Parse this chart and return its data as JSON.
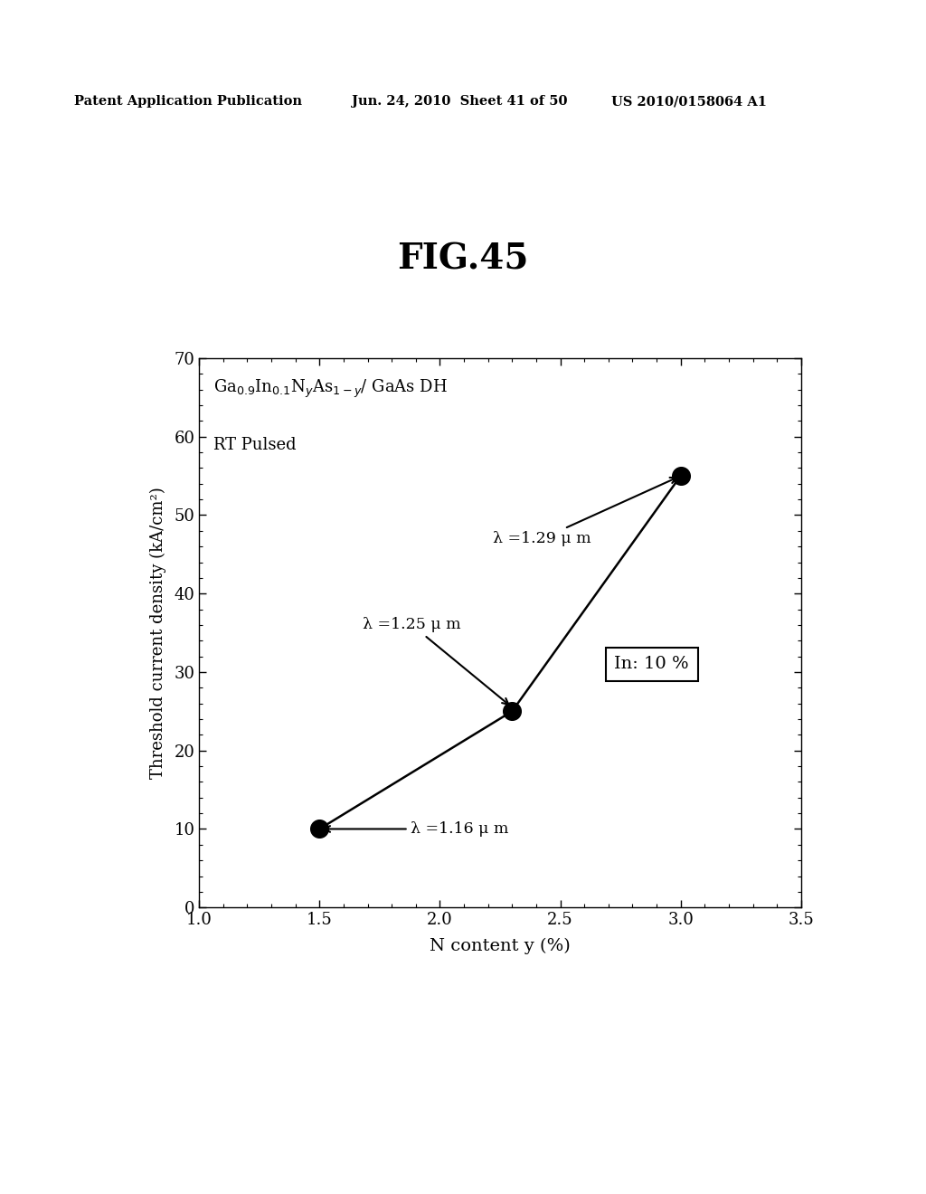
{
  "title": "FIG.45",
  "xlabel": "N content y (%)",
  "ylabel": "Threshold current density (kA/cm²)",
  "xlim": [
    1.0,
    3.5
  ],
  "ylim": [
    0,
    70
  ],
  "xticks": [
    1.0,
    1.5,
    2.0,
    2.5,
    3.0,
    3.5
  ],
  "yticks": [
    0,
    10,
    20,
    30,
    40,
    50,
    60,
    70
  ],
  "data_x": [
    1.5,
    2.3,
    3.0
  ],
  "data_y": [
    10,
    25,
    55
  ],
  "point_color": "#000000",
  "point_size": 200,
  "line_color": "#000000",
  "line_width": 1.8,
  "annotation_lambda116": "λ =1.16 μ m",
  "annotation_lambda125": "λ =1.25 μ m",
  "annotation_lambda129": "λ =1.29 μ m",
  "box_label": "In: 10 %",
  "background_color": "#ffffff",
  "plot_bg_color": "#ffffff",
  "header_left": "Patent Application Publication",
  "header_mid": "Jun. 24, 2010  Sheet 41 of 50",
  "header_right": "US 2010/0158064 A1"
}
